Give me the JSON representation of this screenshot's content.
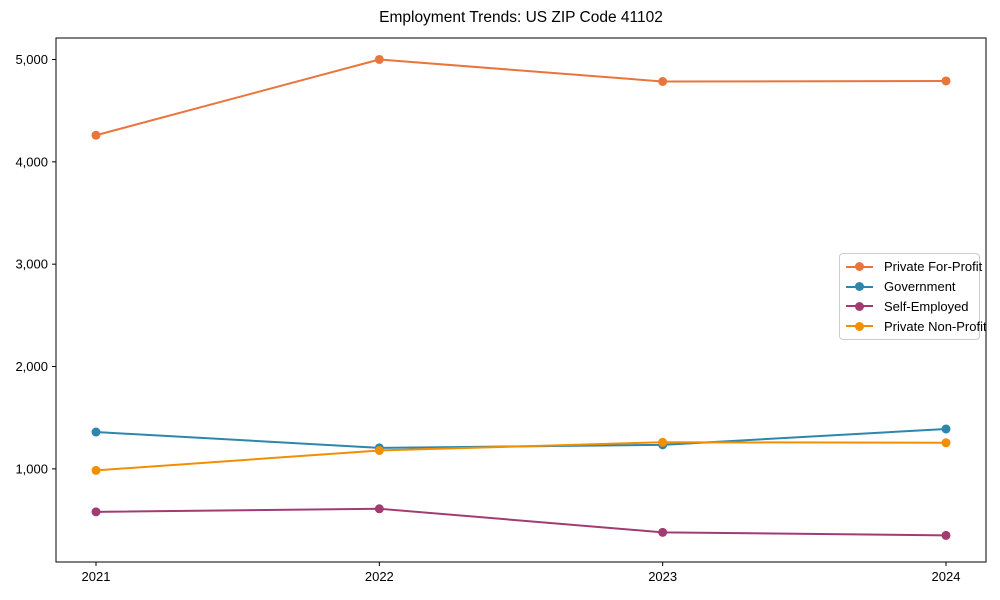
{
  "chart_data": {
    "type": "line",
    "title": "Employment Trends: US ZIP Code 41102",
    "xlabel": "",
    "ylabel": "",
    "categories": [
      "2021",
      "2022",
      "2023",
      "2024"
    ],
    "series": [
      {
        "name": "Private For-Profit",
        "color": "#E8763C",
        "values": [
          4260,
          5000,
          4785,
          4790
        ]
      },
      {
        "name": "Government",
        "color": "#2E86AB",
        "values": [
          1360,
          1205,
          1235,
          1390
        ]
      },
      {
        "name": "Self-Employed",
        "color": "#A23B72",
        "values": [
          580,
          610,
          380,
          350
        ]
      },
      {
        "name": "Private Non-Profit",
        "color": "#F18F01",
        "values": [
          985,
          1180,
          1260,
          1255
        ]
      }
    ],
    "ylim": [
      90,
      5210
    ],
    "yticks": [
      {
        "value": 1000,
        "label": "1,000"
      },
      {
        "value": 2000,
        "label": "2,000"
      },
      {
        "value": 3000,
        "label": "3,000"
      },
      {
        "value": 4000,
        "label": "4,000"
      },
      {
        "value": 5000,
        "label": "5,000"
      }
    ],
    "grid": false,
    "legend_position": "center right",
    "marker": "circle",
    "axis_color": "#000000",
    "background_color": "#FFFFFF"
  }
}
